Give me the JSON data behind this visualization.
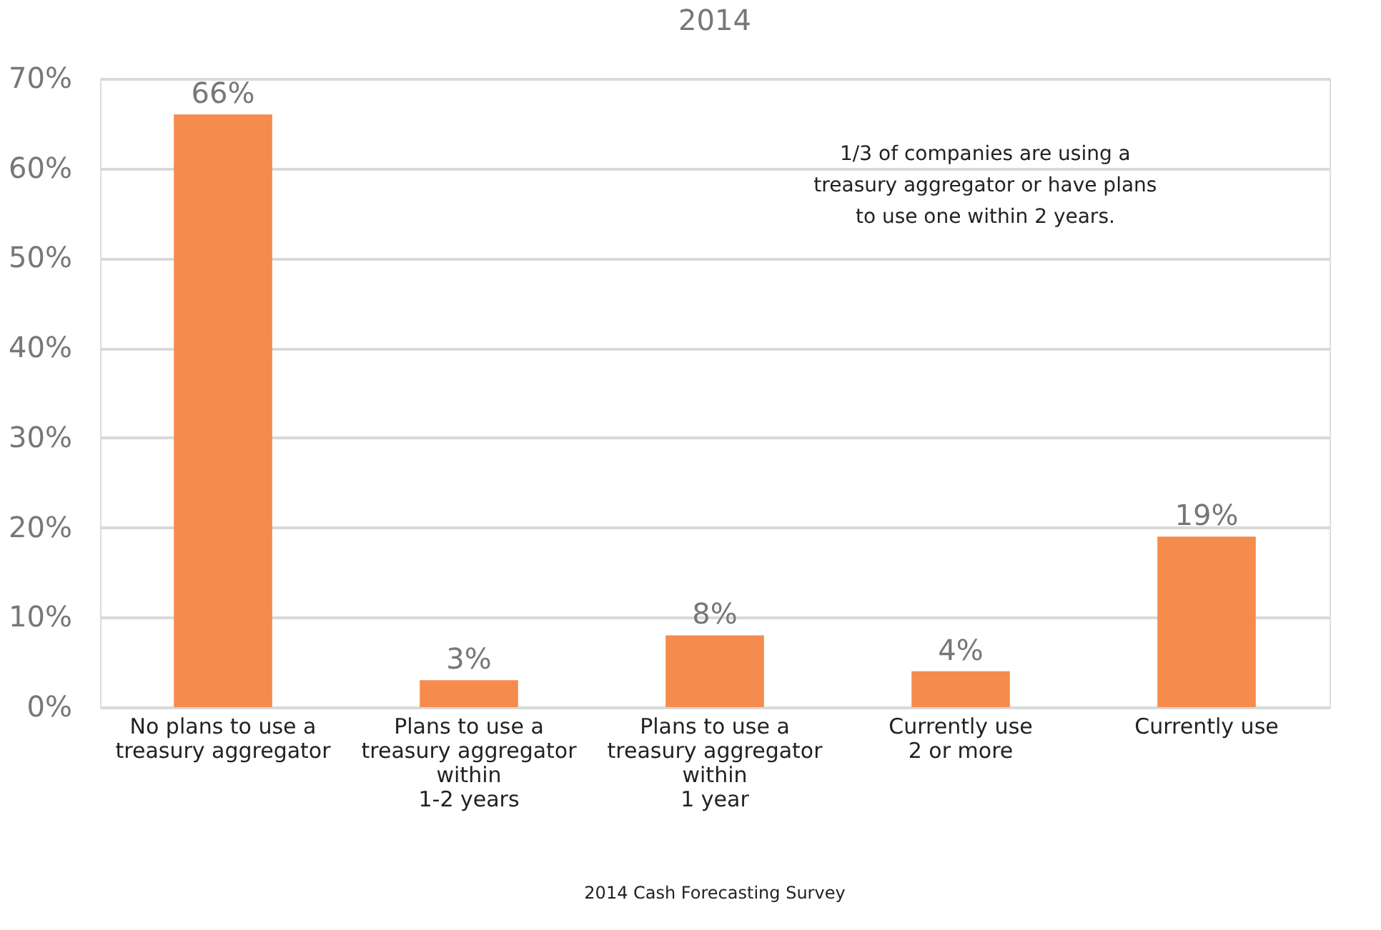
{
  "chart_data": {
    "type": "bar",
    "title": "2014",
    "categories": [
      "No plans to use a\ntreasury aggregator",
      "Plans to use a\ntreasury aggregator\nwithin\n1-2 years",
      "Plans to use a\ntreasury aggregator\nwithin\n1 year",
      "Currently use\n2 or more",
      "Currently use"
    ],
    "values": [
      66,
      3,
      8,
      4,
      19
    ],
    "color": "#f58b4c",
    "ylim": [
      0,
      70
    ],
    "yticks": [
      {
        "value": 0,
        "label": "0%"
      },
      {
        "value": 10,
        "label": "10%"
      },
      {
        "value": 20,
        "label": "20%"
      },
      {
        "value": 30,
        "label": "30%"
      },
      {
        "value": 40,
        "label": "40%"
      },
      {
        "value": 50,
        "label": "50%"
      },
      {
        "value": 60,
        "label": "60%"
      },
      {
        "value": 70,
        "label": "70%"
      }
    ],
    "value_labels": [
      "66%",
      "3%",
      "8%",
      "4%",
      "19%"
    ],
    "grid": "y",
    "annotations": [
      "1/3 of companies are using a\ntreasury aggregator or have plans\nto use one within 2 years.",
      "2014 Cash Forecasting Survey"
    ]
  }
}
